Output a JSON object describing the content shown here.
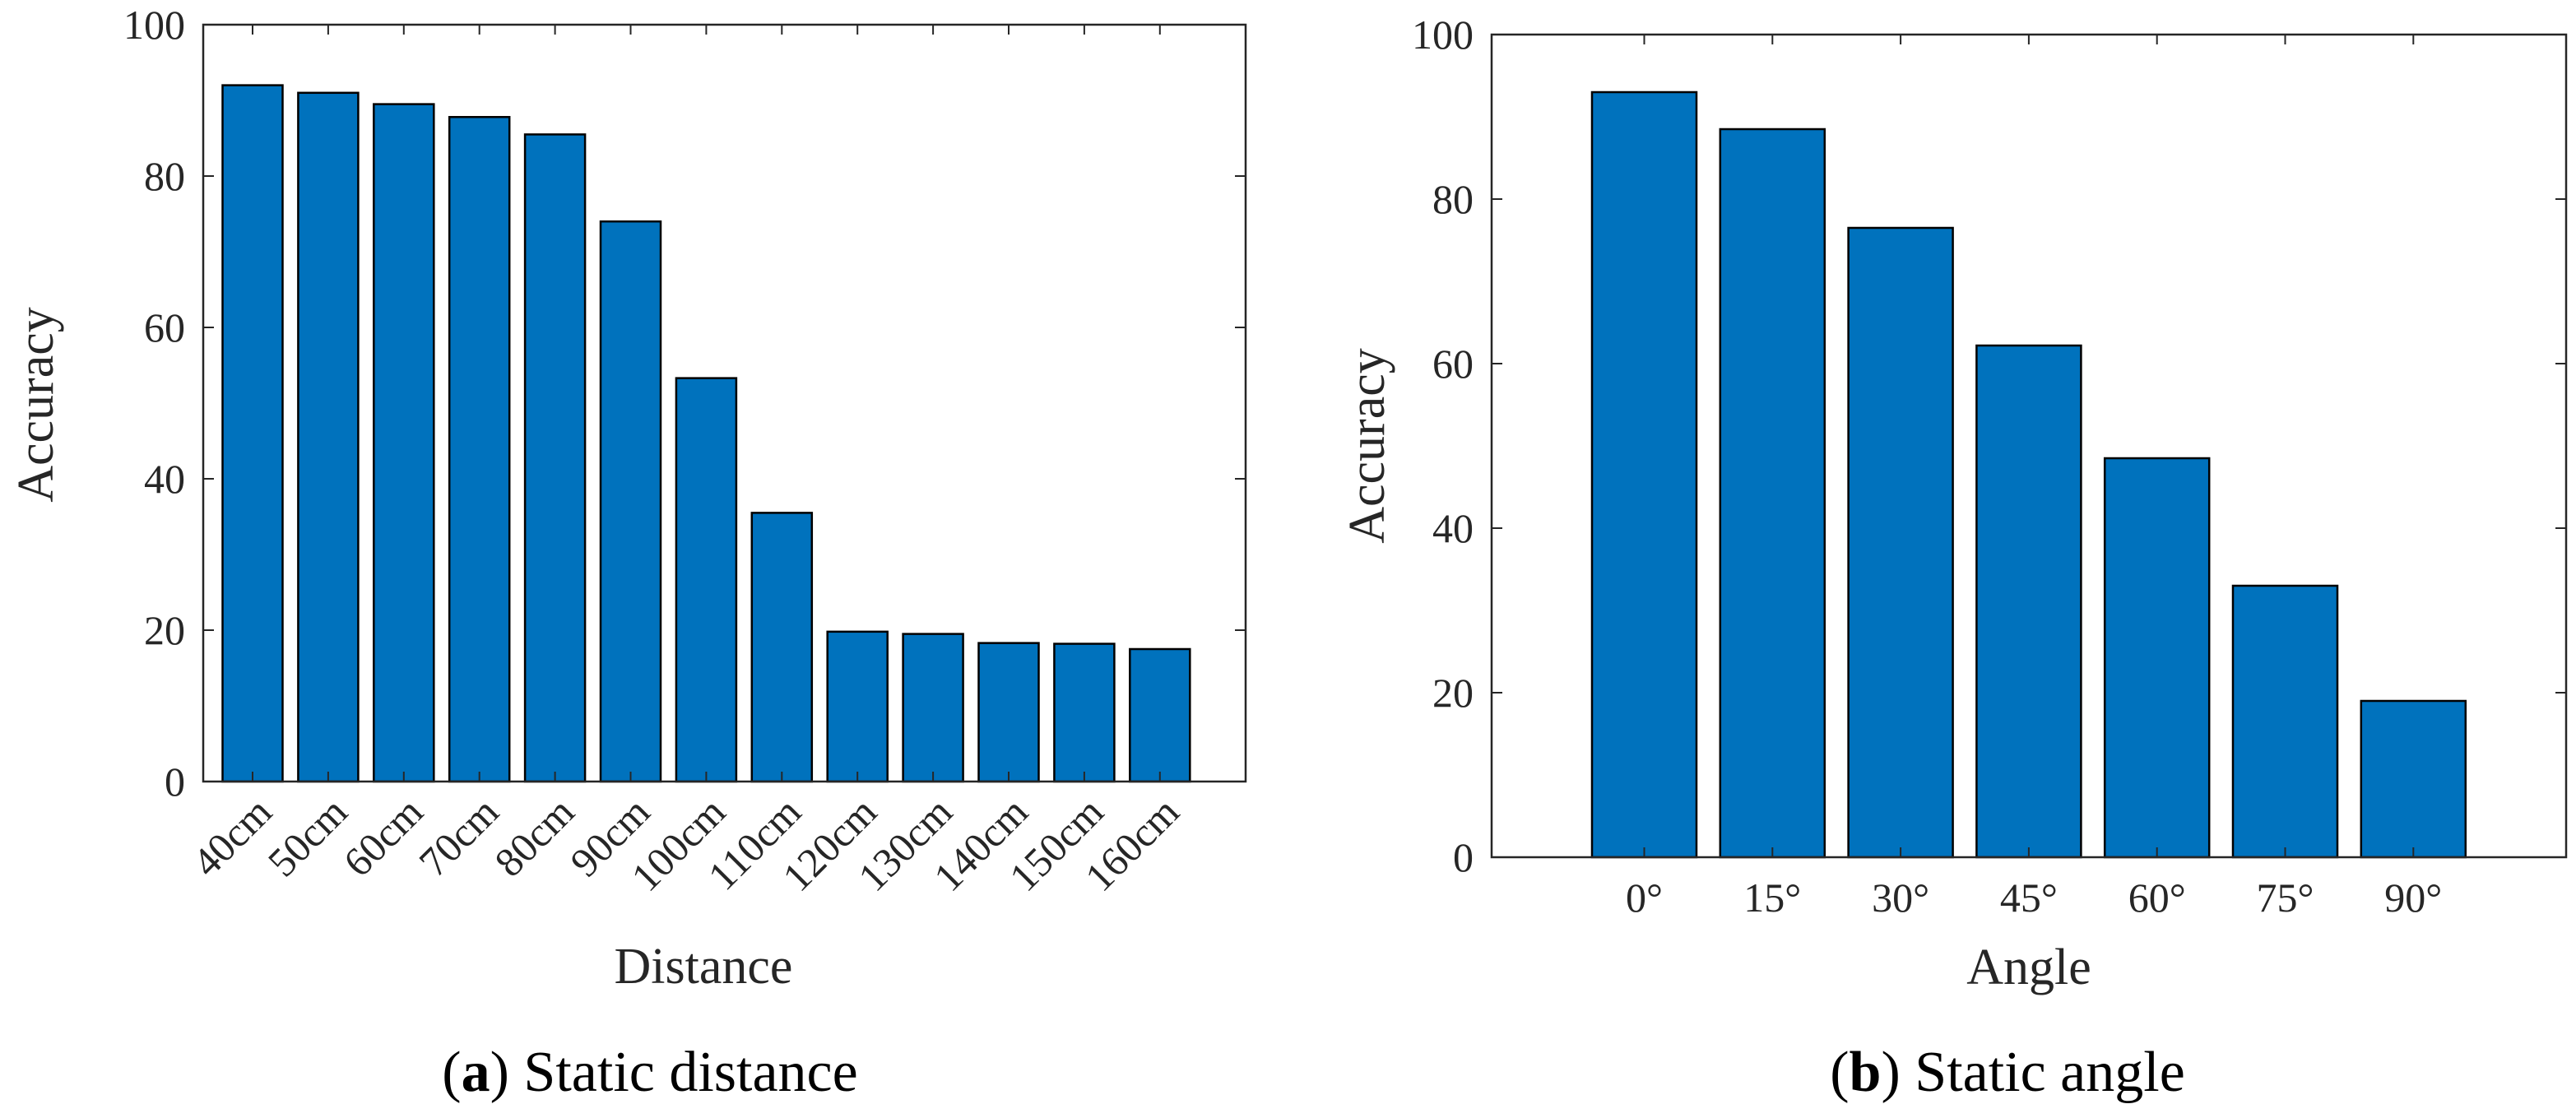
{
  "colors": {
    "bar": "#0072BD",
    "bar_edge": "#000000",
    "axis": "#262626",
    "background": "#ffffff"
  },
  "chart_data": [
    {
      "type": "bar",
      "categories": [
        "40cm",
        "50cm",
        "60cm",
        "70cm",
        "80cm",
        "90cm",
        "100cm",
        "110cm",
        "120cm",
        "130cm",
        "140cm",
        "150cm",
        "160cm"
      ],
      "values": [
        92,
        91,
        89.5,
        87.8,
        85.5,
        74,
        53.3,
        35.5,
        19.8,
        19.5,
        18.3,
        18.2,
        17.5
      ],
      "xlabel": "Distance",
      "ylabel": "Accuracy",
      "ylim": [
        0,
        100
      ],
      "yticks": [
        0,
        20,
        40,
        60,
        80,
        100
      ],
      "grid": false,
      "caption_letter": "a",
      "caption_text": "Static distance"
    },
    {
      "type": "bar",
      "categories": [
        "0°",
        "15°",
        "30°",
        "45°",
        "60°",
        "75°",
        "90°"
      ],
      "values": [
        93,
        88.5,
        76.5,
        62.2,
        48.5,
        33,
        19
      ],
      "xlabel": "Angle",
      "ylabel": "Accuracy",
      "ylim": [
        0,
        100
      ],
      "yticks": [
        0,
        20,
        40,
        60,
        80,
        100
      ],
      "grid": false,
      "caption_letter": "b",
      "caption_text": "Static angle"
    }
  ]
}
